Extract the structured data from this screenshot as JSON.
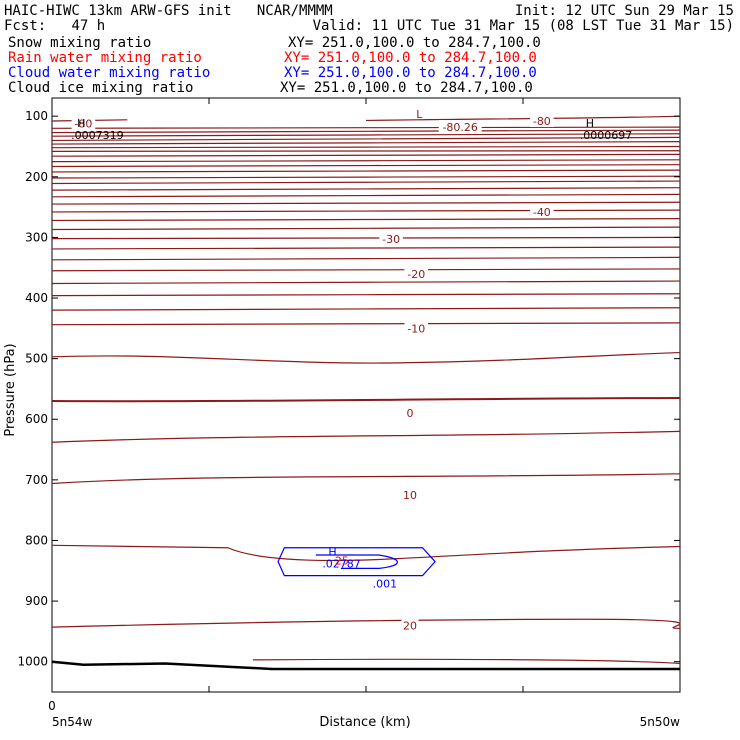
{
  "header": {
    "title_left": "HAIC-HIWC 13km ARW-GFS init",
    "title_center": "NCAR/MMMM",
    "init": "Init: 12 UTC Sun 29 Mar 15",
    "fcst_label": "Fcst:",
    "fcst_value": "47 h",
    "valid": "Valid: 11 UTC Tue 31 Mar 15 (08 LST Tue 31 Mar 15)",
    "fields": [
      {
        "name": "Snow mixing ratio",
        "xy": "XY= 251.0,100.0 to 284.7,100.0",
        "color": "#000000"
      },
      {
        "name": "Rain water mixing ratio",
        "xy": "XY= 251.0,100.0 to 284.7,100.0",
        "color": "#ff0000"
      },
      {
        "name": "Cloud water mixing ratio",
        "xy": "XY= 251.0,100.0 to 284.7,100.0",
        "color": "#0000ff"
      },
      {
        "name": "Cloud ice mixing ratio",
        "xy": "XY= 251.0,100.0 to 284.7,100.0",
        "color": "#000000"
      }
    ]
  },
  "chart_data": {
    "type": "line",
    "ylabel": "Pressure (hPa)",
    "xlabel": "Distance (km)",
    "ylim": [
      1050,
      70
    ],
    "yticks": [
      100,
      200,
      300,
      400,
      500,
      600,
      700,
      800,
      900,
      1000
    ],
    "xlim": [
      0,
      1
    ],
    "x_start_label": "0",
    "x_left_label": "5n54w",
    "x_right_label": "5n50w",
    "temperature_color": "#8b1a1a",
    "temperature_contour_labels": [
      {
        "text": "-80",
        "x": 0.78,
        "p": 108
      },
      {
        "text": "-80",
        "x": 0.05,
        "p": 112
      },
      {
        "text": "-80.26",
        "x": 0.65,
        "p": 118
      },
      {
        "text": "-40",
        "x": 0.78,
        "p": 258
      },
      {
        "text": "-30",
        "x": 0.54,
        "p": 303
      },
      {
        "text": "-20",
        "x": 0.58,
        "p": 360
      },
      {
        "text": "-10",
        "x": 0.58,
        "p": 450
      },
      {
        "text": "0",
        "x": 0.57,
        "p": 590
      },
      {
        "text": "10",
        "x": 0.57,
        "p": 725
      },
      {
        "text": "20",
        "x": 0.57,
        "p": 940
      }
    ],
    "extrema": [
      {
        "mark": "L",
        "x": 0.58,
        "p": 103,
        "color": "#8b1a1a"
      },
      {
        "mark": "H",
        "x": 0.04,
        "p": 118,
        "value": ".0007319",
        "color": "#000000"
      },
      {
        "mark": "H",
        "x": 0.85,
        "p": 118,
        "value": ".0000697",
        "color": "#000000"
      },
      {
        "mark": "H",
        "x": 0.44,
        "p": 825,
        "value": ".02787",
        "color": "#0000ff"
      },
      {
        "mark": "",
        "x": 0.46,
        "p": 840,
        "value": "25",
        "color": "#ff0000"
      }
    ],
    "cloud_water_contour_label": {
      "text": ".001",
      "x": 0.53,
      "p": 878
    }
  }
}
